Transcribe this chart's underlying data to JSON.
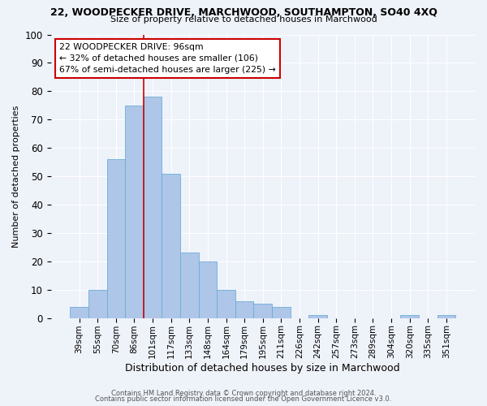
{
  "title": "22, WOODPECKER DRIVE, MARCHWOOD, SOUTHAMPTON, SO40 4XQ",
  "subtitle": "Size of property relative to detached houses in Marchwood",
  "xlabel": "Distribution of detached houses by size in Marchwood",
  "ylabel": "Number of detached properties",
  "bin_labels": [
    "39sqm",
    "55sqm",
    "70sqm",
    "86sqm",
    "101sqm",
    "117sqm",
    "133sqm",
    "148sqm",
    "164sqm",
    "179sqm",
    "195sqm",
    "211sqm",
    "226sqm",
    "242sqm",
    "257sqm",
    "273sqm",
    "289sqm",
    "304sqm",
    "320sqm",
    "335sqm",
    "351sqm"
  ],
  "bar_values": [
    4,
    10,
    56,
    75,
    78,
    51,
    23,
    20,
    10,
    6,
    5,
    4,
    0,
    1,
    0,
    0,
    0,
    0,
    1,
    0,
    1
  ],
  "bar_color": "#aec6e8",
  "bar_edge_color": "#6baed6",
  "bg_color": "#eef2f9",
  "grid_color": "#ffffff",
  "ref_line_color": "#cc0000",
  "annotation_text": "22 WOODPECKER DRIVE: 96sqm\n← 32% of detached houses are smaller (106)\n67% of semi-detached houses are larger (225) →",
  "annotation_box_color": "#ffffff",
  "annotation_box_edge": "#cc0000",
  "ylim": [
    0,
    100
  ],
  "yticks": [
    0,
    10,
    20,
    30,
    40,
    50,
    60,
    70,
    80,
    90,
    100
  ],
  "footer1": "Contains HM Land Registry data © Crown copyright and database right 2024.",
  "footer2": "Contains public sector information licensed under the Open Government Licence v3.0."
}
